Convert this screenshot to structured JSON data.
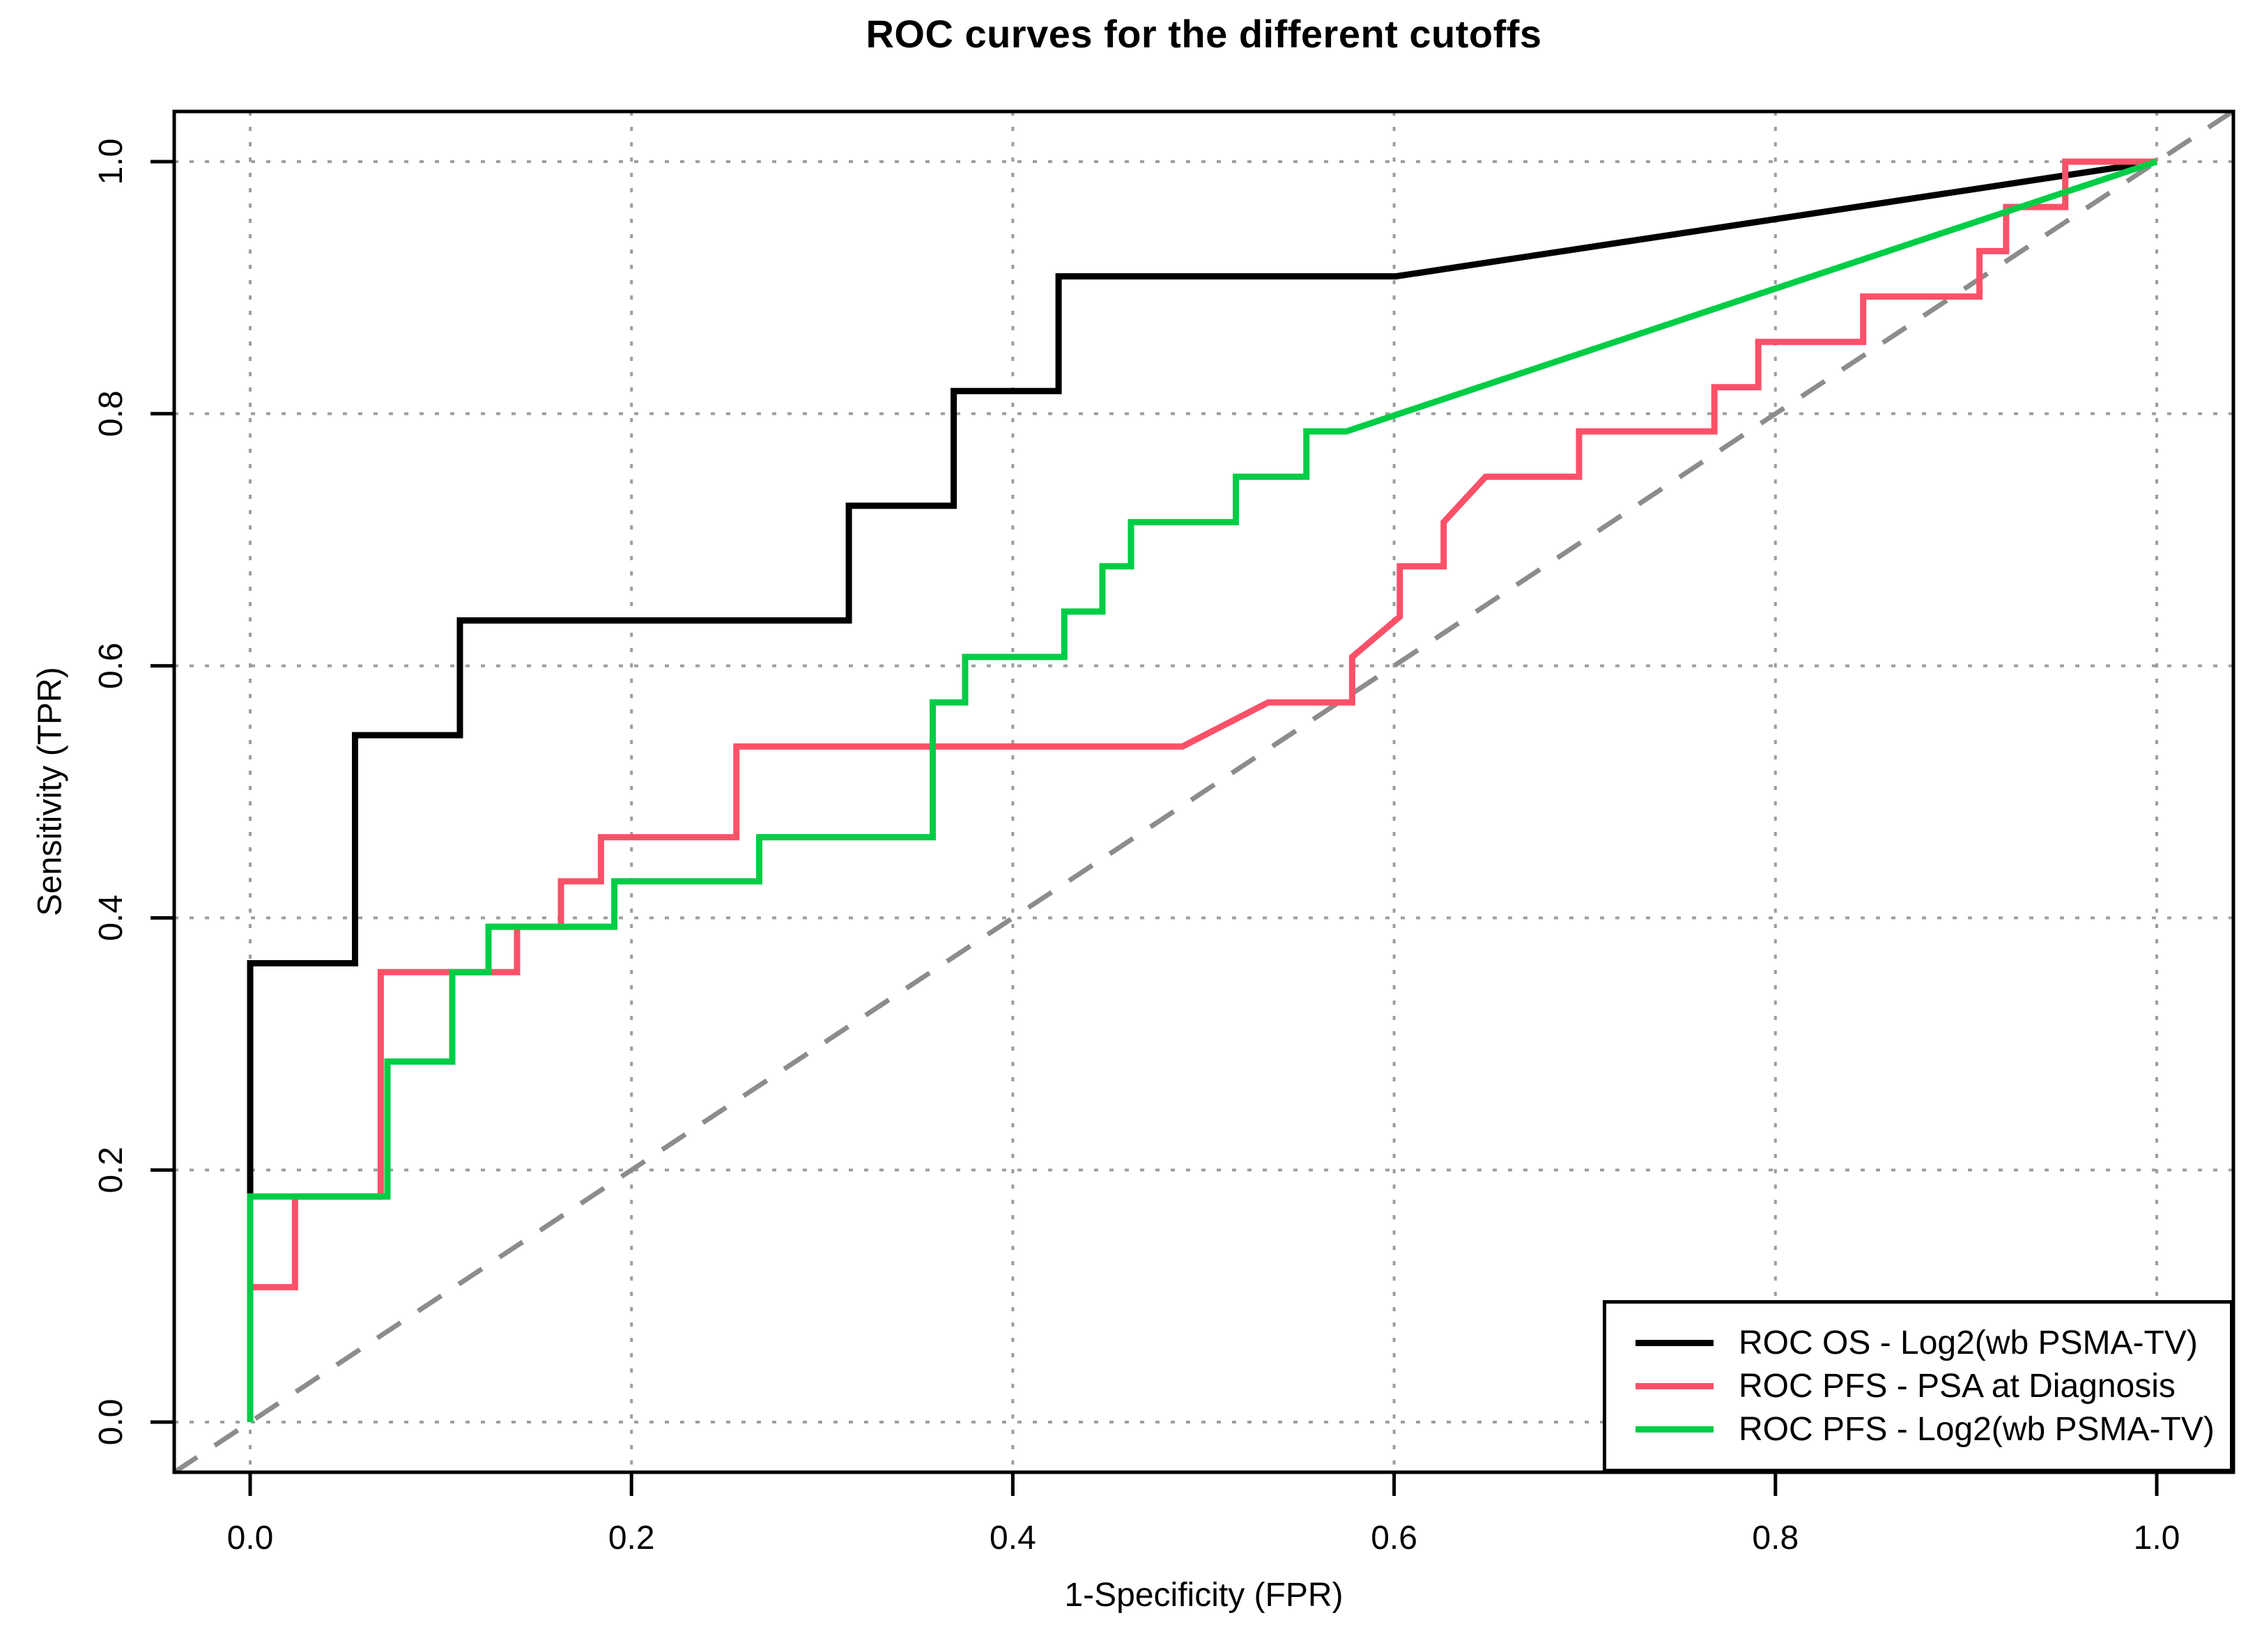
{
  "chart": {
    "title": "ROC curves for the different cutoffs",
    "x_axis": {
      "label": "1-Specificity (FPR)",
      "tick_labels": [
        "0.0",
        "0.2",
        "0.4",
        "0.6",
        "0.8",
        "1.0"
      ],
      "tick_values": [
        0,
        0.2,
        0.4,
        0.6,
        0.8,
        1.0
      ],
      "range": [
        -0.04,
        1.04
      ]
    },
    "y_axis": {
      "label": "Sensitivity (TPR)",
      "tick_labels": [
        "0.0",
        "0.2",
        "0.4",
        "0.6",
        "0.8",
        "1.0"
      ],
      "tick_values": [
        0,
        0.2,
        0.4,
        0.6,
        0.8,
        1.0
      ],
      "range": [
        -0.04,
        1.04
      ]
    },
    "colors": {
      "frame": "#000000",
      "gridline": "#9e9e9e",
      "diagonal": "#8c8c8c",
      "text": "#000000",
      "background": "#ffffff"
    }
  },
  "chart_data": {
    "type": "line",
    "subtype": "roc-step-curves",
    "title": "ROC curves for the different cutoffs",
    "xlabel": "1-Specificity (FPR)",
    "ylabel": "Sensitivity (TPR)",
    "xlim": [
      0,
      1
    ],
    "ylim": [
      0,
      1
    ],
    "grid": true,
    "grid_interval": 0.2,
    "legend_position": "bottom-right",
    "reference_line": {
      "name": "chance-diagonal",
      "from": [
        -0.04,
        -0.04
      ],
      "to": [
        1.04,
        1.04
      ],
      "style": "dashed",
      "color": "#8c8c8c"
    },
    "series": [
      {
        "name": "ROC OS - Log2(wb PSMA-TV)",
        "key": "roc-curve-os-log2-psma-tv",
        "color": "#000000",
        "style": "step",
        "points": [
          [
            0,
            0
          ],
          [
            0,
            0.364
          ],
          [
            0.055,
            0.364
          ],
          [
            0.055,
            0.545
          ],
          [
            0.11,
            0.545
          ],
          [
            0.11,
            0.636
          ],
          [
            0.314,
            0.636
          ],
          [
            0.314,
            0.727
          ],
          [
            0.369,
            0.727
          ],
          [
            0.369,
            0.818
          ],
          [
            0.424,
            0.818
          ],
          [
            0.424,
            0.909
          ],
          [
            0.601,
            0.909
          ],
          [
            1,
            1
          ]
        ]
      },
      {
        "name": "ROC PFS - PSA at Diagnosis",
        "key": "roc-curve-pfs-psa",
        "color": "#FC5168",
        "style": "step",
        "points": [
          [
            0,
            0
          ],
          [
            0,
            0.107
          ],
          [
            0.0235,
            0.107
          ],
          [
            0.0235,
            0.179
          ],
          [
            0.0685,
            0.179
          ],
          [
            0.0685,
            0.357
          ],
          [
            0.14,
            0.357
          ],
          [
            0.14,
            0.393
          ],
          [
            0.163,
            0.393
          ],
          [
            0.163,
            0.429
          ],
          [
            0.184,
            0.429
          ],
          [
            0.184,
            0.464
          ],
          [
            0.255,
            0.464
          ],
          [
            0.255,
            0.536
          ],
          [
            0.489,
            0.536
          ],
          [
            0.534,
            0.571
          ],
          [
            0.578,
            0.571
          ],
          [
            0.578,
            0.607
          ],
          [
            0.603,
            0.639
          ],
          [
            0.603,
            0.679
          ],
          [
            0.626,
            0.679
          ],
          [
            0.626,
            0.714
          ],
          [
            0.648,
            0.75
          ],
          [
            0.697,
            0.75
          ],
          [
            0.697,
            0.786
          ],
          [
            0.768,
            0.786
          ],
          [
            0.768,
            0.821
          ],
          [
            0.791,
            0.821
          ],
          [
            0.791,
            0.857
          ],
          [
            0.846,
            0.857
          ],
          [
            0.846,
            0.893
          ],
          [
            0.907,
            0.893
          ],
          [
            0.907,
            0.929
          ],
          [
            0.921,
            0.929
          ],
          [
            0.921,
            0.964
          ],
          [
            0.952,
            0.964
          ],
          [
            0.952,
            1.0
          ],
          [
            1,
            1
          ]
        ]
      },
      {
        "name": "ROC PFS - Log2(wb PSMA-TV)",
        "key": "roc-curve-pfs-log2-psma-tv",
        "color": "#00CD46",
        "style": "step",
        "points": [
          [
            0,
            0
          ],
          [
            0,
            0.179
          ],
          [
            0.072,
            0.179
          ],
          [
            0.072,
            0.286
          ],
          [
            0.106,
            0.286
          ],
          [
            0.106,
            0.357
          ],
          [
            0.125,
            0.357
          ],
          [
            0.125,
            0.393
          ],
          [
            0.191,
            0.393
          ],
          [
            0.191,
            0.429
          ],
          [
            0.267,
            0.429
          ],
          [
            0.267,
            0.464
          ],
          [
            0.358,
            0.464
          ],
          [
            0.358,
            0.571
          ],
          [
            0.375,
            0.571
          ],
          [
            0.375,
            0.607
          ],
          [
            0.427,
            0.607
          ],
          [
            0.427,
            0.643
          ],
          [
            0.447,
            0.643
          ],
          [
            0.447,
            0.679
          ],
          [
            0.462,
            0.679
          ],
          [
            0.462,
            0.714
          ],
          [
            0.517,
            0.714
          ],
          [
            0.517,
            0.75
          ],
          [
            0.554,
            0.75
          ],
          [
            0.554,
            0.786
          ],
          [
            0.575,
            0.786
          ],
          [
            1,
            1
          ]
        ]
      }
    ]
  },
  "legend": {
    "items": [
      {
        "label": "ROC OS - Log2(wb PSMA-TV)",
        "color": "#000000"
      },
      {
        "label": "ROC PFS - PSA at Diagnosis",
        "color": "#FC5168"
      },
      {
        "label": "ROC PFS - Log2(wb PSMA-TV)",
        "color": "#00CD46"
      }
    ]
  }
}
